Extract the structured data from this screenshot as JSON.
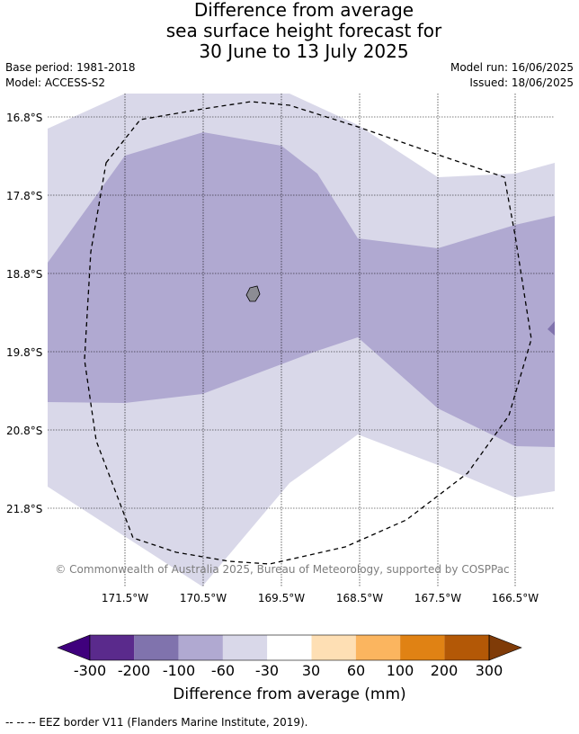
{
  "title": {
    "line1": "Difference from average",
    "line2": "sea surface height forecast for",
    "line3": "30 June to 13 July 2025"
  },
  "meta": {
    "base_period": "Base period: 1981-2018",
    "model": "Model: ACCESS-S2",
    "model_run": "Model run: 16/06/2025",
    "issued": "Issued: 18/06/2025"
  },
  "map": {
    "lat_labels": [
      "16.8°S",
      "17.8°S",
      "18.8°S",
      "19.8°S",
      "20.8°S",
      "21.8°S"
    ],
    "lon_labels": [
      "171.5°W",
      "170.5°W",
      "169.5°W",
      "168.5°W",
      "167.5°W",
      "166.5°W"
    ],
    "copyright": "© Commonwealth of Australia 2025, Bureau of Meteorology, supported by COSPPac",
    "colors": {
      "band_neg100_neg60": "#b0a9d1",
      "band_neg60_neg30": "#d9d8e9",
      "band_neg30_30": "#ffffff",
      "land": "#8c8c94",
      "eez": "#000000",
      "grid": "#000000"
    }
  },
  "colorbar": {
    "ticks": [
      "-300",
      "-200",
      "-100",
      "-60",
      "-30",
      "30",
      "60",
      "100",
      "200",
      "300"
    ],
    "colors": [
      "#3f007d",
      "#5a2a8c",
      "#8073ad",
      "#b0a9d1",
      "#d9d8e9",
      "#ffffff",
      "#fedfb4",
      "#fbb55f",
      "#e08214",
      "#b35806",
      "#7f3b08"
    ],
    "label": "Difference from average (mm)"
  },
  "footer": "--  --  -- EEZ border V11 (Flanders Marine Institute, 2019)."
}
